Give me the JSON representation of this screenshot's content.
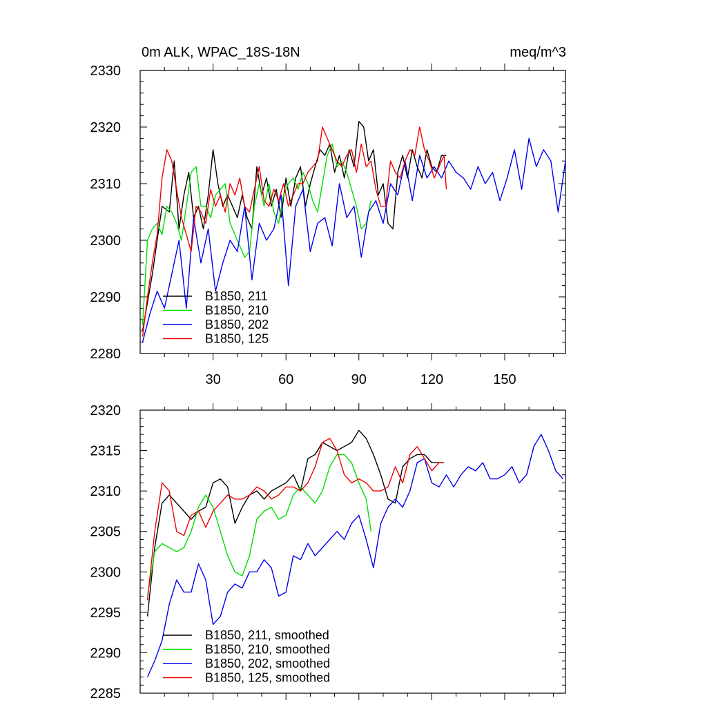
{
  "chart_data": [
    {
      "type": "line",
      "title_left": "0m ALK, WPAC_18S-18N",
      "title_right": "meq/m^3",
      "xlabel": "",
      "ylabel": "",
      "xlim": [
        0,
        175
      ],
      "ylim": [
        2280,
        2330
      ],
      "yticks": [
        2280,
        2290,
        2300,
        2310,
        2320,
        2330
      ],
      "ytick_labels": [
        "2280",
        "2290",
        "2300",
        "2310",
        "2320",
        "2330"
      ],
      "xticks": [
        30,
        60,
        90,
        120,
        150
      ],
      "xtick_labels": [
        "30",
        "60",
        "90",
        "120",
        "150"
      ],
      "grid": false,
      "legend_position": "bottom-left",
      "series": [
        {
          "name": "B1850, 211",
          "color": "#000000",
          "x": [
            1,
            5,
            9,
            12,
            14,
            16,
            18,
            20,
            22,
            24,
            26,
            28,
            30,
            32,
            34,
            36,
            38,
            40,
            42,
            44,
            46,
            48,
            50,
            52,
            54,
            56,
            58,
            60,
            62,
            64,
            66,
            68,
            70,
            72,
            74,
            76,
            78,
            80,
            82,
            84,
            86,
            88,
            90,
            92,
            94,
            96,
            98,
            100,
            102,
            104,
            106,
            108,
            110,
            112,
            114,
            116,
            118,
            120,
            122,
            124,
            126
          ],
          "y": [
            2284,
            2294,
            2306,
            2305,
            2314,
            2302,
            2308,
            2312,
            2304,
            2306,
            2302,
            2308,
            2316,
            2310,
            2306,
            2308,
            2306,
            2304,
            2308,
            2304,
            2302,
            2313,
            2308,
            2311,
            2306,
            2309,
            2304,
            2311,
            2306,
            2311,
            2313,
            2306,
            2310,
            2313,
            2316,
            2315,
            2317,
            2312,
            2315,
            2311,
            2316,
            2313,
            2321,
            2320,
            2314,
            2316,
            2308,
            2310,
            2303,
            2302,
            2312,
            2315,
            2311,
            2316,
            2313,
            2311,
            2316,
            2313,
            2312,
            2315,
            2315
          ]
        },
        {
          "name": "B1850, 210",
          "color": "#00dd00",
          "x": [
            1,
            3,
            5,
            7,
            9,
            11,
            13,
            15,
            17,
            19,
            21,
            23,
            25,
            27,
            29,
            31,
            33,
            35,
            37,
            39,
            41,
            43,
            45,
            47,
            49,
            51,
            53,
            55,
            57,
            59,
            61,
            63,
            65,
            67,
            69,
            71,
            73,
            75,
            77,
            79,
            81,
            83,
            85,
            87,
            89,
            91,
            93,
            95
          ],
          "y": [
            2285,
            2300,
            2302,
            2303,
            2301,
            2306,
            2305,
            2303,
            2300,
            2306,
            2312,
            2313,
            2306,
            2306,
            2304,
            2308,
            2309,
            2310,
            2303,
            2301,
            2299,
            2297,
            2298,
            2306,
            2310,
            2306,
            2310,
            2305,
            2303,
            2308,
            2310,
            2311,
            2309,
            2312,
            2310,
            2307,
            2305,
            2310,
            2315,
            2317,
            2313,
            2314,
            2312,
            2309,
            2306,
            2302,
            2303,
            2307
          ]
        },
        {
          "name": "B1850, 202",
          "color": "#0000ee",
          "x": [
            1,
            4,
            7,
            10,
            13,
            16,
            19,
            22,
            25,
            28,
            31,
            34,
            37,
            40,
            43,
            46,
            49,
            52,
            55,
            58,
            61,
            64,
            67,
            70,
            73,
            76,
            79,
            82,
            85,
            88,
            91,
            94,
            97,
            100,
            103,
            106,
            109,
            112,
            115,
            118,
            121,
            124,
            127,
            130,
            133,
            136,
            139,
            142,
            145,
            148,
            151,
            154,
            157,
            160,
            163,
            166,
            169,
            172,
            175
          ],
          "y": [
            2282,
            2287,
            2291,
            2288,
            2294,
            2300,
            2288,
            2304,
            2296,
            2302,
            2291,
            2296,
            2300,
            2298,
            2306,
            2293,
            2303,
            2300,
            2302,
            2308,
            2292,
            2306,
            2309,
            2298,
            2303,
            2304,
            2299,
            2310,
            2304,
            2306,
            2297,
            2305,
            2307,
            2303,
            2310,
            2308,
            2314,
            2307,
            2315,
            2311,
            2313,
            2311,
            2314,
            2312,
            2311,
            2309,
            2313,
            2310,
            2312,
            2307,
            2311,
            2316,
            2309,
            2318,
            2313,
            2316,
            2314,
            2305,
            2314
          ]
        },
        {
          "name": "B1850, 125",
          "color": "#ee0000",
          "x": [
            1,
            3,
            5,
            7,
            9,
            11,
            13,
            15,
            17,
            19,
            21,
            23,
            25,
            27,
            29,
            31,
            33,
            35,
            37,
            39,
            41,
            43,
            45,
            47,
            49,
            51,
            53,
            55,
            57,
            59,
            61,
            63,
            65,
            67,
            69,
            71,
            73,
            75,
            77,
            79,
            81,
            83,
            85,
            87,
            89,
            91,
            93,
            95,
            97,
            99,
            101,
            103,
            105,
            107,
            109,
            111,
            113,
            115,
            117,
            119,
            121,
            123,
            125,
            126
          ],
          "y": [
            2283,
            2290,
            2296,
            2301,
            2311,
            2316,
            2314,
            2309,
            2304,
            2301,
            2298,
            2306,
            2305,
            2303,
            2309,
            2306,
            2308,
            2305,
            2310,
            2308,
            2311,
            2306,
            2305,
            2309,
            2313,
            2307,
            2306,
            2309,
            2307,
            2310,
            2306,
            2308,
            2310,
            2310,
            2312,
            2313,
            2314,
            2320,
            2318,
            2316,
            2314,
            2313,
            2315,
            2316,
            2312,
            2317,
            2313,
            2314,
            2309,
            2306,
            2306,
            2314,
            2312,
            2311,
            2314,
            2316,
            2315,
            2320,
            2316,
            2314,
            2311,
            2313,
            2315,
            2309
          ]
        }
      ]
    },
    {
      "type": "line",
      "title_left": "",
      "title_right": "",
      "xlabel": "",
      "ylabel": "",
      "xlim": [
        0,
        175
      ],
      "ylim": [
        2285,
        2320
      ],
      "yticks": [
        2285,
        2290,
        2295,
        2300,
        2305,
        2310,
        2315,
        2320
      ],
      "ytick_labels": [
        "2285",
        "2290",
        "2295",
        "2300",
        "2305",
        "2310",
        "2315",
        "2320"
      ],
      "xticks": [
        30,
        60,
        90,
        120,
        150
      ],
      "xtick_labels": [],
      "grid": false,
      "legend_position": "bottom-left",
      "series": [
        {
          "name": "B1850, 211, smoothed",
          "color": "#000000",
          "x": [
            3,
            6,
            9,
            12,
            15,
            18,
            21,
            24,
            27,
            30,
            33,
            36,
            39,
            42,
            45,
            48,
            51,
            54,
            57,
            60,
            63,
            66,
            69,
            72,
            75,
            78,
            81,
            84,
            87,
            90,
            93,
            96,
            99,
            102,
            105,
            108,
            111,
            114,
            117,
            120,
            123,
            125
          ],
          "y": [
            2294.5,
            2303,
            2308.5,
            2309.5,
            2308.5,
            2307.5,
            2306.5,
            2307.5,
            2308,
            2311,
            2311.5,
            2310.5,
            2306,
            2308,
            2309.5,
            2310,
            2309,
            2310,
            2310.5,
            2311,
            2312,
            2310,
            2314,
            2314.5,
            2316,
            2315.5,
            2315,
            2315.5,
            2316,
            2317.5,
            2316.5,
            2314.5,
            2312,
            2309,
            2308.5,
            2313,
            2314,
            2314.5,
            2314.5,
            2313.5,
            2313.5,
            2313.5
          ]
        },
        {
          "name": "B1850, 210, smoothed",
          "color": "#00dd00",
          "x": [
            3,
            6,
            9,
            12,
            15,
            18,
            21,
            24,
            27,
            30,
            33,
            36,
            39,
            42,
            45,
            48,
            51,
            54,
            57,
            60,
            63,
            66,
            69,
            72,
            75,
            78,
            81,
            84,
            87,
            90,
            93,
            95
          ],
          "y": [
            2297,
            2302.5,
            2303.5,
            2303,
            2302.5,
            2303,
            2305,
            2308,
            2309.5,
            2308,
            2305,
            2302,
            2300,
            2299.5,
            2302,
            2306.5,
            2307.5,
            2308,
            2306.5,
            2307,
            2309.5,
            2310.5,
            2309.5,
            2308.5,
            2310,
            2313,
            2314.5,
            2314.5,
            2313.5,
            2311,
            2309,
            2305
          ]
        },
        {
          "name": "B1850, 202, smoothed",
          "color": "#0000ee",
          "x": [
            3,
            6,
            9,
            12,
            15,
            18,
            21,
            24,
            27,
            30,
            33,
            36,
            39,
            42,
            45,
            48,
            51,
            54,
            57,
            60,
            63,
            66,
            69,
            72,
            75,
            78,
            81,
            84,
            87,
            90,
            93,
            96,
            99,
            102,
            105,
            108,
            111,
            114,
            117,
            120,
            123,
            126,
            129,
            132,
            135,
            138,
            141,
            144,
            147,
            150,
            153,
            156,
            159,
            162,
            165,
            168,
            171,
            174
          ],
          "y": [
            2287,
            2289,
            2291.5,
            2296,
            2299,
            2297.5,
            2297.5,
            2301,
            2299,
            2293.5,
            2294.5,
            2297.5,
            2298.5,
            2298,
            2300,
            2300,
            2301.5,
            2300.5,
            2297,
            2297.5,
            2302,
            2301.5,
            2303.5,
            2302,
            2303,
            2304,
            2305,
            2304,
            2306,
            2307,
            2304,
            2300.5,
            2306,
            2308,
            2309,
            2308,
            2310,
            2313.5,
            2314,
            2311,
            2310.5,
            2312,
            2310.5,
            2312,
            2313,
            2312.5,
            2313.5,
            2311.5,
            2311.5,
            2312,
            2313,
            2311,
            2312,
            2315.5,
            2317,
            2315,
            2312.5,
            2311.5
          ]
        },
        {
          "name": "B1850, 125, smoothed",
          "color": "#ee0000",
          "x": [
            3,
            6,
            9,
            12,
            15,
            18,
            21,
            24,
            27,
            30,
            33,
            36,
            39,
            42,
            45,
            48,
            51,
            54,
            57,
            60,
            63,
            66,
            69,
            72,
            75,
            78,
            81,
            84,
            87,
            90,
            93,
            96,
            99,
            102,
            105,
            108,
            111,
            114,
            117,
            120,
            123,
            125
          ],
          "y": [
            2296.5,
            2305,
            2311,
            2310,
            2305,
            2304.5,
            2307,
            2307.5,
            2305.5,
            2307.5,
            2308.5,
            2309.5,
            2309,
            2309,
            2309.5,
            2310.5,
            2310,
            2309,
            2309.5,
            2310.5,
            2310.5,
            2310,
            2311,
            2313,
            2316,
            2316.5,
            2315,
            2312,
            2311,
            2311.5,
            2311,
            2310,
            2310,
            2310.5,
            2313,
            2311,
            2314.5,
            2315.5,
            2314,
            2312.5,
            2313.5,
            2313.5
          ]
        }
      ]
    }
  ]
}
